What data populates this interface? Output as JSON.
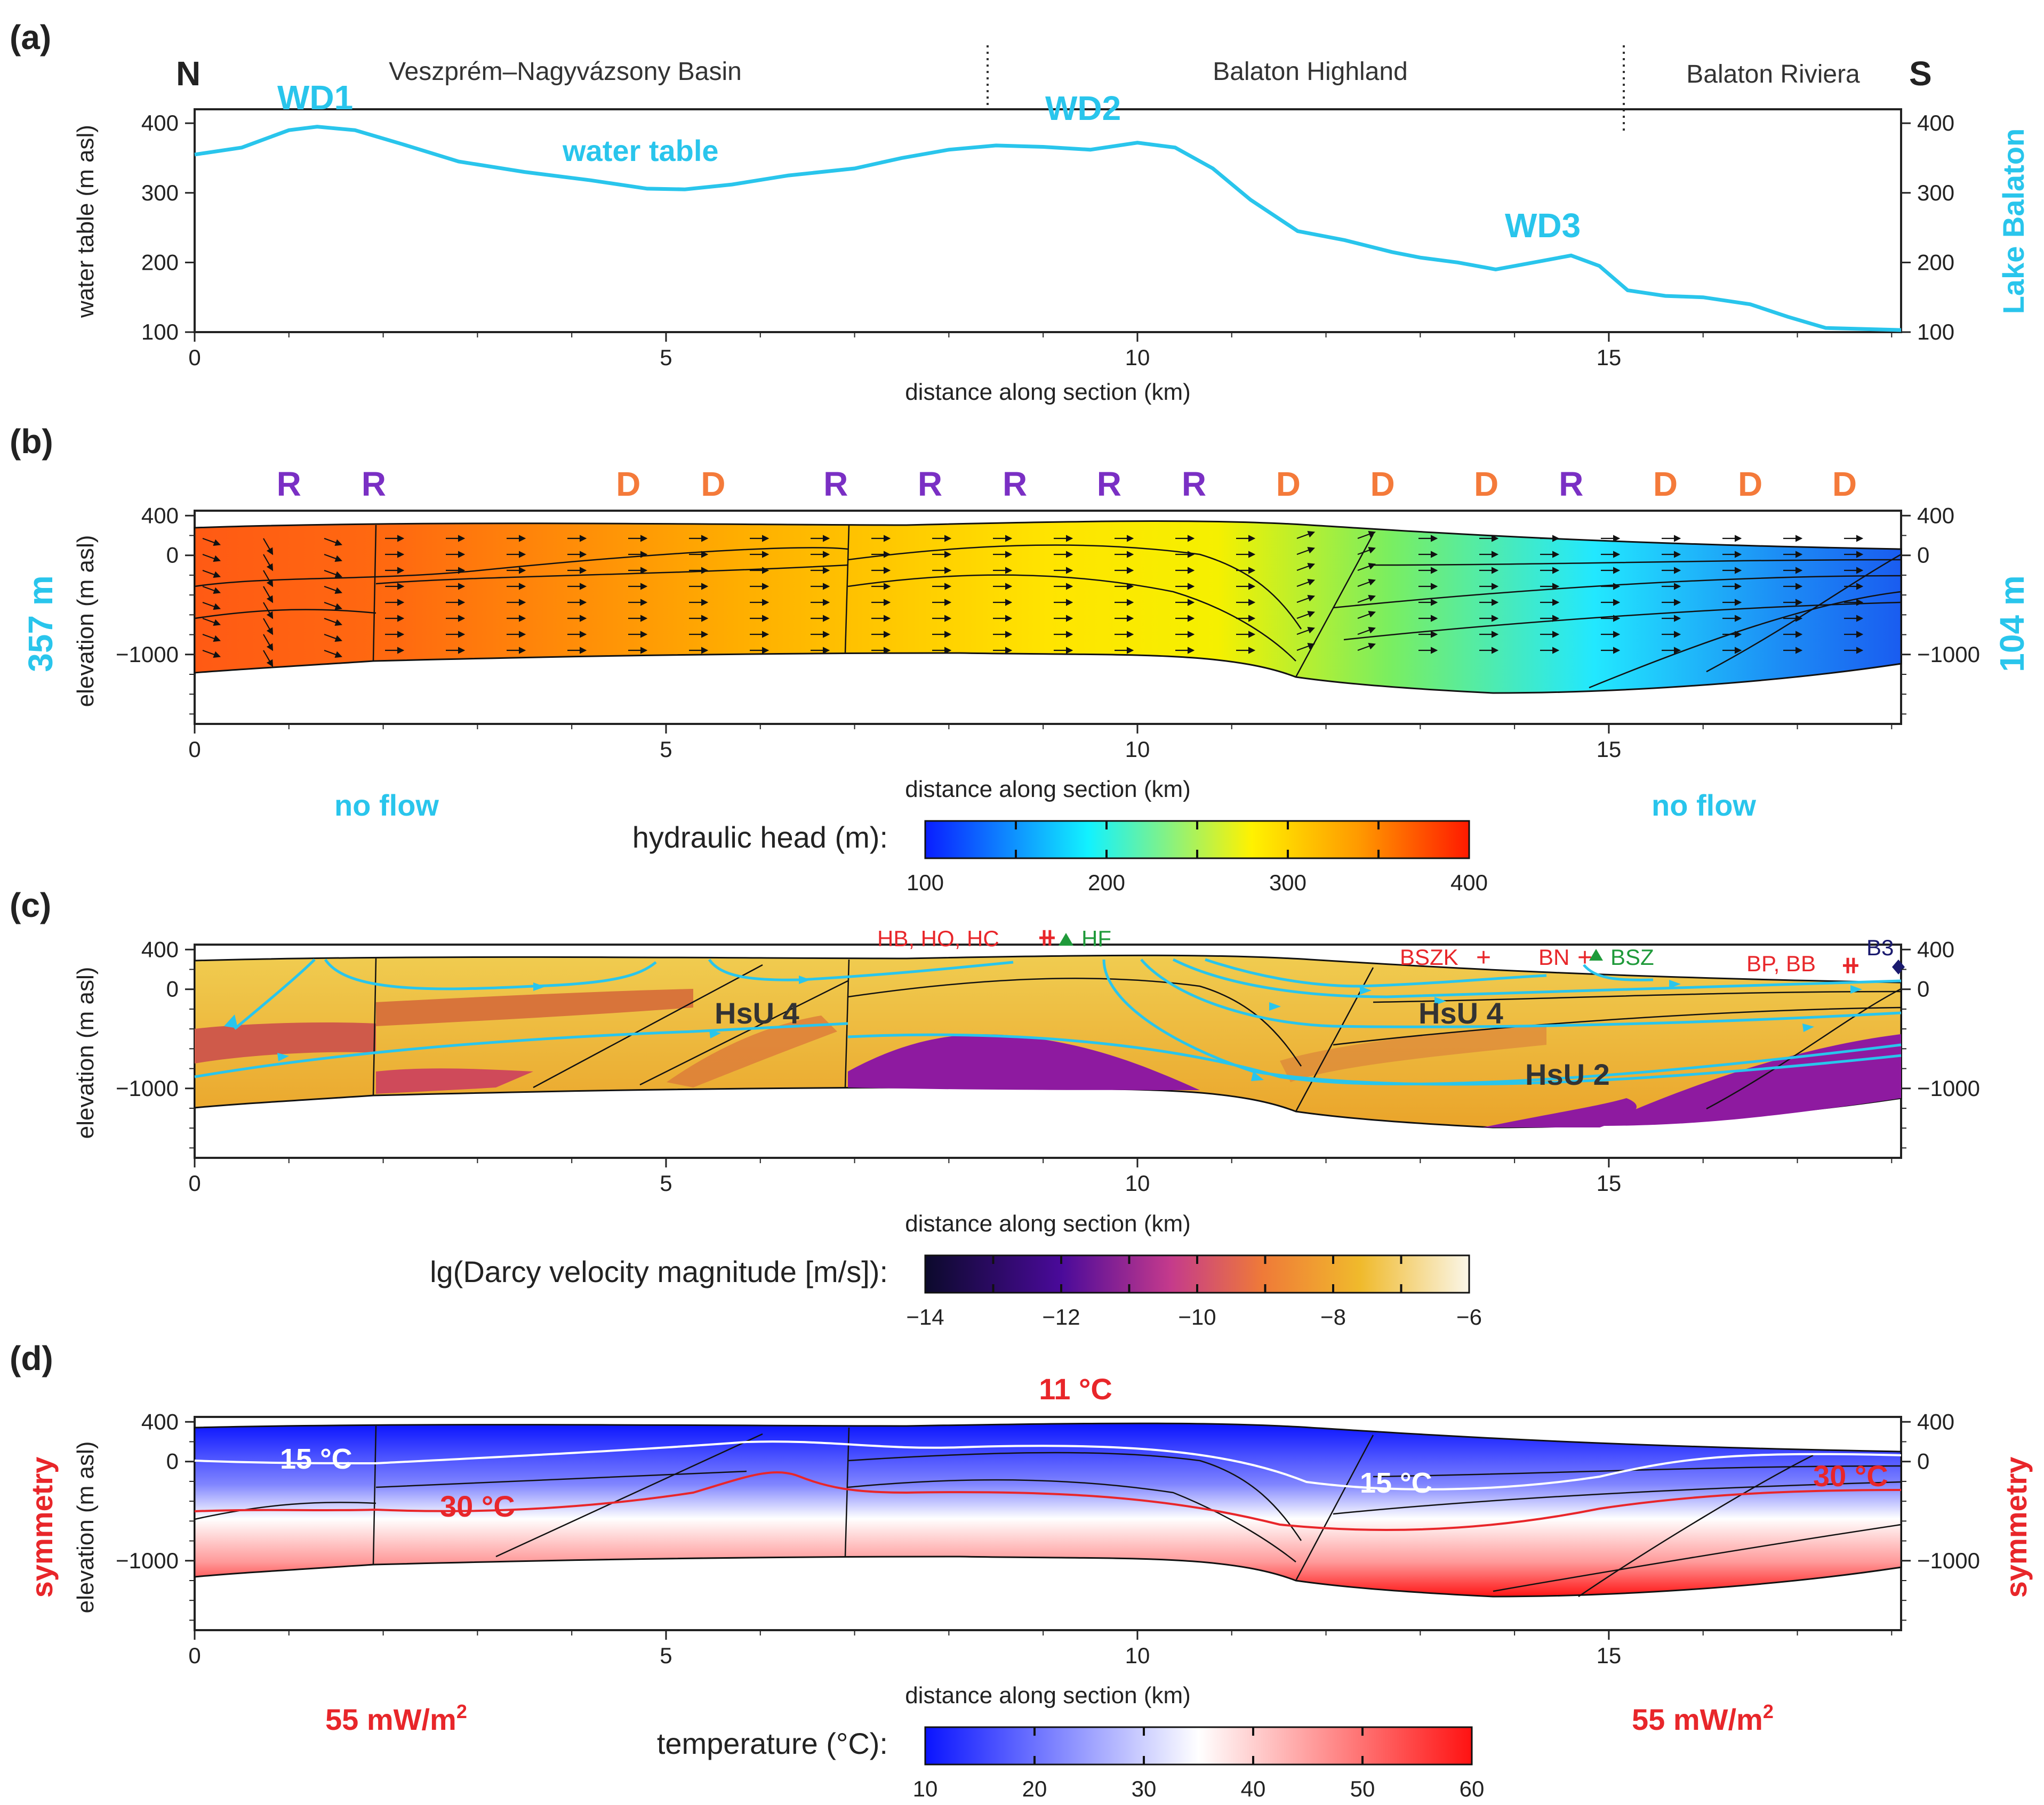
{
  "colors": {
    "cyan": "#29c5ec",
    "recharge": "#7a2fc4",
    "discharge": "#f47a3a",
    "red": "#e8262a",
    "green": "#1f9a3a",
    "navy": "#1a1a6e"
  },
  "panel_a": {
    "label": "(a)",
    "north": "N",
    "south": "S",
    "regions": [
      "Veszprém–Nagyvázsony Basin",
      "Balaton Highland",
      "Balaton Riviera"
    ],
    "region_dividers_km": [
      8.5,
      15.1
    ],
    "peaks": [
      "WD1",
      "WD2",
      "WD3"
    ],
    "curve_label": "water table",
    "right_label": "Lake Balaton",
    "ylabel": "water table (m asl)",
    "xlabel": "distance along section (km)"
  },
  "panel_b": {
    "label": "(b)",
    "markers": [
      "R",
      "R",
      "D",
      "D",
      "R",
      "R",
      "R",
      "R",
      "R",
      "D",
      "D",
      "D",
      "R",
      "D",
      "D",
      "D"
    ],
    "left_head": "357 m",
    "right_head": "104 m",
    "left_boundary": "no flow",
    "right_boundary": "no flow",
    "ylabel": "elevation (m asl)",
    "xlabel": "distance along section (km)",
    "colorbar_title": "hydraulic head (m):",
    "colorbar_ticks": [
      "100",
      "200",
      "300",
      "400"
    ]
  },
  "panel_c": {
    "label": "(c)",
    "units": [
      "HsU 4",
      "HsU 4",
      "HsU 2"
    ],
    "sites": [
      "HB, HO, HC",
      "HF",
      "BSZK",
      "BN",
      "BSZ",
      "BP, BB",
      "B3"
    ],
    "ylabel": "elevation (m asl)",
    "xlabel": "distance along section (km)",
    "colorbar_title": "lg(Darcy velocity magnitude [m/s]):",
    "colorbar_ticks": [
      "−14",
      "−12",
      "−10",
      "−8",
      "−6"
    ]
  },
  "panel_d": {
    "label": "(d)",
    "top_temp": "11 °C",
    "isotherm_15": "15 °C",
    "isotherm_30": "30 °C",
    "side_label": "symmetry",
    "heat_flow": "55 mW/m",
    "heat_flow_exp": "2",
    "ylabel": "elevation (m asl)",
    "xlabel": "distance along section (km)",
    "colorbar_title": "temperature (°C):",
    "colorbar_ticks": [
      "10",
      "20",
      "30",
      "40",
      "50",
      "60"
    ]
  },
  "chart_data": [
    {
      "type": "line",
      "title": "(a) water table",
      "xlabel": "distance along section (km)",
      "ylabel": "water table (m asl)",
      "xlim": [
        0,
        18.1
      ],
      "ylim": [
        100,
        420
      ],
      "x_ticks": [
        "0",
        "5",
        "10",
        "15"
      ],
      "y_ticks": [
        "100",
        "200",
        "300",
        "400"
      ],
      "series": [
        {
          "name": "water table",
          "x": [
            0,
            0.5,
            1.0,
            1.3,
            1.7,
            2.2,
            2.8,
            3.5,
            4.2,
            4.8,
            5.2,
            5.7,
            6.3,
            7.0,
            7.5,
            8.0,
            8.5,
            9.0,
            9.5,
            10.0,
            10.4,
            10.8,
            11.2,
            11.7,
            12.2,
            12.7,
            13.0,
            13.4,
            13.8,
            14.2,
            14.6,
            14.9,
            15.2,
            15.6,
            16.0,
            16.5,
            16.9,
            17.3,
            18.1
          ],
          "values": [
            355,
            365,
            390,
            395,
            390,
            370,
            345,
            330,
            318,
            306,
            305,
            312,
            325,
            335,
            350,
            362,
            368,
            366,
            362,
            372,
            365,
            335,
            290,
            245,
            232,
            215,
            207,
            200,
            190,
            200,
            210,
            195,
            160,
            152,
            150,
            140,
            122,
            106,
            103
          ]
        }
      ]
    },
    {
      "type": "heatmap",
      "title": "(b) hydraulic head (m)",
      "xlabel": "distance along section (km)",
      "ylabel": "elevation (m asl)",
      "xlim": [
        0,
        18.1
      ],
      "ylim": [
        -1700,
        450
      ],
      "x_ticks": [
        "0",
        "5",
        "10",
        "15"
      ],
      "y_ticks": [
        "400",
        "0",
        "−1000"
      ],
      "recharge_discharge_km": [
        1.0,
        1.9,
        4.6,
        5.5,
        6.8,
        7.8,
        8.7,
        9.7,
        10.6,
        11.6,
        12.6,
        13.7,
        14.6,
        15.6,
        16.5,
        17.5
      ],
      "colorbar_range": [
        100,
        400
      ],
      "boundary_heads_m": [
        357,
        104
      ]
    },
    {
      "type": "heatmap",
      "title": "(c) lg(Darcy velocity magnitude [m/s])",
      "xlabel": "distance along section (km)",
      "ylabel": "elevation (m asl)",
      "xlim": [
        0,
        18.1
      ],
      "ylim": [
        -1700,
        450
      ],
      "x_ticks": [
        "0",
        "5",
        "10",
        "15"
      ],
      "y_ticks": [
        "400",
        "0",
        "−1000"
      ],
      "colorbar_range": [
        -14,
        -6
      ]
    },
    {
      "type": "heatmap",
      "title": "(d) temperature (°C)",
      "xlabel": "distance along section (km)",
      "ylabel": "elevation (m asl)",
      "xlim": [
        0,
        18.1
      ],
      "ylim": [
        -1700,
        450
      ],
      "x_ticks": [
        "0",
        "5",
        "10",
        "15"
      ],
      "y_ticks": [
        "400",
        "0",
        "−1000"
      ],
      "colorbar_range": [
        10,
        60
      ],
      "surface_temperature_c": 11,
      "basal_heat_flow_mw_m2": 55
    }
  ]
}
